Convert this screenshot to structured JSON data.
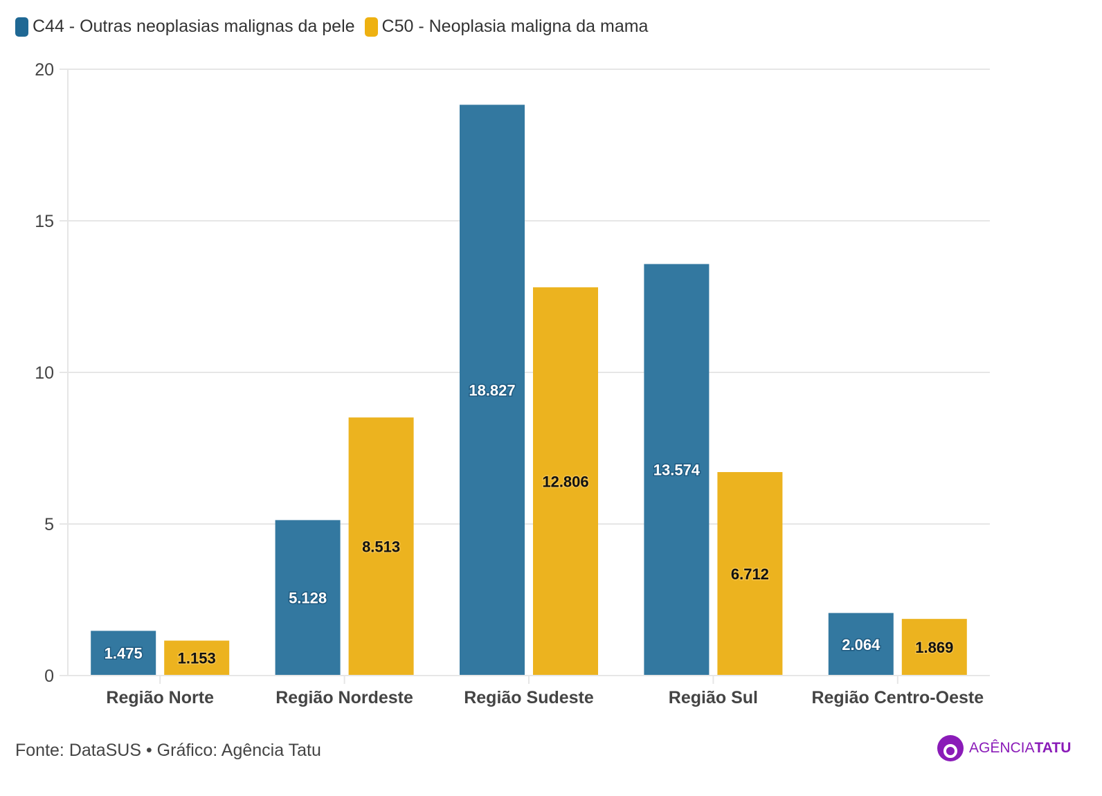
{
  "chart_data": {
    "type": "bar",
    "categories": [
      "Região Norte",
      "Região Nordeste",
      "Região Sudeste",
      "Região Sul",
      "Região Centro-Oeste"
    ],
    "series": [
      {
        "name": "C44 - Outras neoplasias malignas da pele",
        "color": "#3378a0",
        "label_color": "#ffffff",
        "values": [
          1.475,
          5.128,
          18.827,
          13.574,
          2.064
        ],
        "labels": [
          "1.475",
          "5.128",
          "18.827",
          "13.574",
          "2.064"
        ]
      },
      {
        "name": "C50 - Neoplasia maligna da mama",
        "color": "#ecb31f",
        "label_color": "#111111",
        "values": [
          1.153,
          8.513,
          12.806,
          6.712,
          1.869
        ],
        "labels": [
          "1.153",
          "8.513",
          "12.806",
          "6.712",
          "1.869"
        ]
      }
    ],
    "ylim": [
      0,
      20
    ],
    "yticks": [
      0,
      5,
      10,
      15,
      20
    ],
    "ytick_labels": [
      "0",
      "5",
      "10",
      "15",
      "20"
    ],
    "legend_position": "top-left",
    "grid": true
  },
  "footer": {
    "source": "Fonte: DataSUS • Gráfico: Agência Tatu"
  },
  "logo": {
    "text_light": "AGÊNCIA",
    "text_bold": "TATU"
  }
}
